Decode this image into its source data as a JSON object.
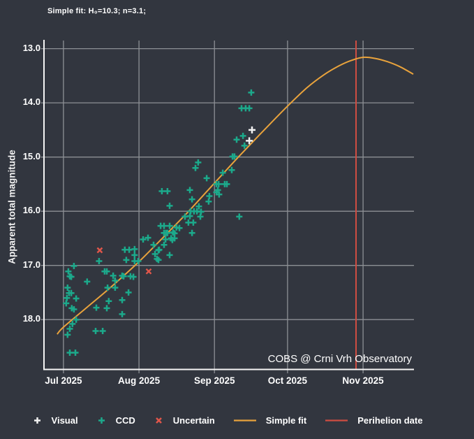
{
  "title": "Simple fit: H₀=10.3; n=3.1;",
  "watermark": "COBS @ Crni Vrh Observatory",
  "colors": {
    "background": "#32363f",
    "grid": "#8d9095",
    "axis": "#f5f5f5",
    "text": "#ffffff",
    "visual": "#f2f2f2",
    "ccd": "#1ca98b",
    "uncertain": "#e0564a",
    "fit": "#e9a33c",
    "perihelion": "#cf4d42"
  },
  "chart_data": {
    "type": "scatter",
    "title": "Simple fit: H₀=10.3; n=3.1;",
    "xlabel": "",
    "ylabel": "Apparent total magnitude",
    "x_unit_note": "days since 2025-07-01",
    "xlim": [
      -8.0,
      143.9
    ],
    "ylim": [
      12.85,
      18.92
    ],
    "y_inverted": true,
    "grid": true,
    "legend_position": "bottom",
    "x_ticks": [
      {
        "day": 0,
        "label": "Jul 2025"
      },
      {
        "day": 31,
        "label": "Aug 2025"
      },
      {
        "day": 62,
        "label": "Sep 2025"
      },
      {
        "day": 92,
        "label": "Oct 2025"
      },
      {
        "day": 123,
        "label": "Nov 2025"
      }
    ],
    "y_ticks": [
      {
        "mag": 13,
        "label": "13.0"
      },
      {
        "mag": 14,
        "label": "14.0"
      },
      {
        "mag": 15,
        "label": "15.0"
      },
      {
        "mag": 16,
        "label": "16.0"
      },
      {
        "mag": 17,
        "label": "17.0"
      },
      {
        "mag": 18,
        "label": "18.0"
      }
    ],
    "series": [
      {
        "name": "Visual",
        "kind": "scatter",
        "marker": "plus",
        "color": "#f2f2f2",
        "points": [
          [
            77.4,
            14.5
          ],
          [
            76.3,
            14.7
          ]
        ]
      },
      {
        "name": "CCD",
        "kind": "scatter",
        "marker": "plus",
        "color": "#1ca98b",
        "points": [
          [
            4.3,
            17.01
          ],
          [
            2.0,
            17.11
          ],
          [
            2.6,
            17.2
          ],
          [
            3.2,
            17.21
          ],
          [
            9.7,
            17.3
          ],
          [
            1.7,
            17.41
          ],
          [
            2.3,
            17.51
          ],
          [
            3.2,
            17.51
          ],
          [
            1.4,
            17.6
          ],
          [
            5.2,
            17.61
          ],
          [
            1.1,
            17.7
          ],
          [
            3.4,
            17.79
          ],
          [
            4.3,
            17.81
          ],
          [
            5.2,
            18.0
          ],
          [
            3.7,
            18.08
          ],
          [
            2.6,
            18.17
          ],
          [
            1.7,
            18.28
          ],
          [
            13.2,
            18.21
          ],
          [
            16.1,
            18.21
          ],
          [
            2.6,
            18.61
          ],
          [
            4.9,
            18.61
          ],
          [
            14.6,
            16.92
          ],
          [
            16.9,
            17.11
          ],
          [
            17.8,
            17.11
          ],
          [
            20.4,
            17.19
          ],
          [
            24.1,
            17.19
          ],
          [
            18.1,
            17.41
          ],
          [
            21.2,
            17.41
          ],
          [
            21.2,
            17.28
          ],
          [
            26.7,
            17.5
          ],
          [
            18.6,
            17.66
          ],
          [
            24.1,
            17.64
          ],
          [
            13.5,
            17.78
          ],
          [
            17.8,
            17.79
          ],
          [
            24.1,
            17.9
          ],
          [
            25.2,
            16.71
          ],
          [
            27.0,
            16.71
          ],
          [
            29.2,
            16.7
          ],
          [
            25.8,
            16.9
          ],
          [
            29.2,
            16.81
          ],
          [
            29.2,
            16.92
          ],
          [
            30.7,
            16.92
          ],
          [
            24.7,
            17.2
          ],
          [
            27.5,
            17.2
          ],
          [
            28.7,
            17.21
          ],
          [
            32.7,
            16.52
          ],
          [
            34.7,
            16.49
          ],
          [
            37.0,
            16.62
          ],
          [
            41.3,
            16.4
          ],
          [
            42.7,
            16.4
          ],
          [
            45.6,
            16.41
          ],
          [
            41.9,
            16.52
          ],
          [
            44.7,
            16.53
          ],
          [
            39.3,
            16.71
          ],
          [
            37.6,
            16.79
          ],
          [
            39.0,
            16.9
          ],
          [
            43.6,
            16.81
          ],
          [
            40.4,
            15.63
          ],
          [
            42.7,
            15.63
          ],
          [
            51.9,
            15.61
          ],
          [
            52.8,
            15.78
          ],
          [
            43.6,
            15.9
          ],
          [
            55.6,
            15.91
          ],
          [
            59.9,
            15.72
          ],
          [
            62.8,
            15.65
          ],
          [
            63.9,
            15.69
          ],
          [
            59.6,
            15.82
          ],
          [
            52.2,
            16.0
          ],
          [
            53.6,
            16.0
          ],
          [
            54.8,
            16.0
          ],
          [
            56.5,
            16.01
          ],
          [
            49.9,
            16.1
          ],
          [
            51.9,
            16.09
          ],
          [
            56.2,
            16.1
          ],
          [
            51.3,
            16.21
          ],
          [
            53.3,
            16.21
          ],
          [
            39.9,
            16.27
          ],
          [
            41.3,
            16.27
          ],
          [
            43.6,
            16.27
          ],
          [
            46.4,
            16.3
          ],
          [
            47.6,
            16.31
          ],
          [
            42.1,
            16.4
          ],
          [
            45.0,
            16.39
          ],
          [
            44.2,
            16.5
          ],
          [
            45.6,
            16.5
          ],
          [
            41.3,
            16.62
          ],
          [
            52.8,
            16.4
          ],
          [
            72.2,
            16.1
          ],
          [
            39.0,
            16.72
          ],
          [
            38.4,
            16.88
          ],
          [
            73.7,
            14.61
          ],
          [
            71.1,
            14.68
          ],
          [
            74.3,
            14.79
          ],
          [
            69.4,
            14.99
          ],
          [
            70.2,
            14.99
          ],
          [
            69.1,
            15.24
          ],
          [
            65.4,
            15.29
          ],
          [
            55.3,
            15.1
          ],
          [
            54.2,
            15.2
          ],
          [
            58.8,
            15.39
          ],
          [
            62.8,
            15.5
          ],
          [
            63.7,
            15.5
          ],
          [
            66.2,
            15.5
          ],
          [
            67.1,
            15.5
          ],
          [
            63.4,
            15.61
          ],
          [
            77.1,
            13.81
          ],
          [
            73.1,
            14.1
          ],
          [
            74.8,
            14.1
          ],
          [
            76.3,
            14.1
          ]
        ]
      },
      {
        "name": "Uncertain",
        "kind": "scatter",
        "marker": "x",
        "color": "#e0564a",
        "points": [
          [
            14.9,
            16.72
          ],
          [
            35.0,
            17.11
          ]
        ]
      },
      {
        "name": "Simple fit",
        "kind": "line",
        "color": "#e9a33c",
        "points": [
          [
            -2.6,
            18.27
          ],
          [
            0,
            18.14
          ],
          [
            10,
            17.76
          ],
          [
            20,
            17.38
          ],
          [
            31,
            16.93
          ],
          [
            41,
            16.48
          ],
          [
            51,
            16.02
          ],
          [
            62,
            15.48
          ],
          [
            72,
            14.99
          ],
          [
            82,
            14.52
          ],
          [
            92,
            14.06
          ],
          [
            100,
            13.72
          ],
          [
            107,
            13.48
          ],
          [
            113,
            13.32
          ],
          [
            118,
            13.22
          ],
          [
            123,
            13.16
          ],
          [
            128,
            13.18
          ],
          [
            133,
            13.24
          ],
          [
            138,
            13.33
          ],
          [
            143.6,
            13.47
          ]
        ]
      },
      {
        "name": "Perihelion date",
        "kind": "vline",
        "color": "#cf4d42",
        "day": 120.1
      }
    ]
  }
}
